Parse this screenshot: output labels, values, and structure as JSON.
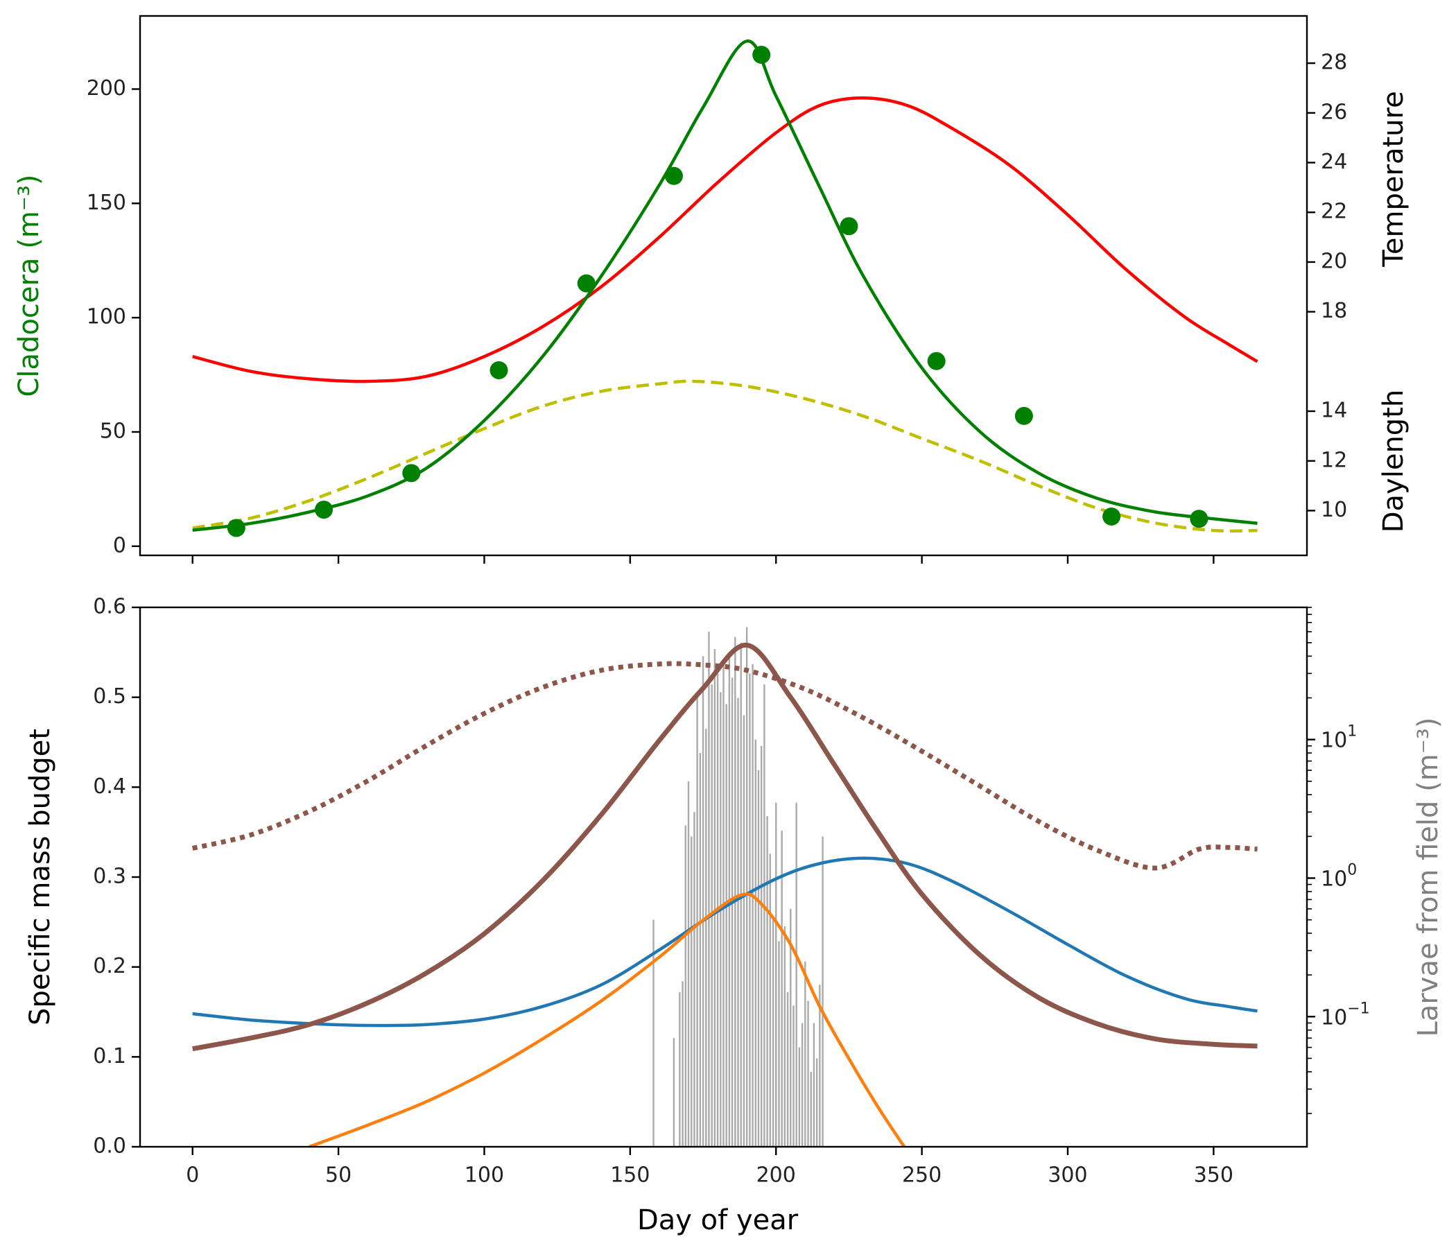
{
  "chart_data": [
    {
      "type": "line",
      "xlim": [
        -18,
        382
      ],
      "xticks": [
        0,
        50,
        100,
        150,
        200,
        250,
        300,
        350
      ],
      "ylabel": "Cladocera (m⁻³)",
      "ylim": [
        -4,
        232
      ],
      "yticks": [
        0,
        50,
        100,
        150,
        200
      ],
      "right_axis": {
        "labels": [
          "Temperature",
          "Daylength"
        ],
        "ylim": [
          8.2,
          29.9
        ],
        "temperature_ticks": [
          18,
          20,
          22,
          24,
          26,
          28
        ],
        "daylength_ticks": [
          10,
          12,
          14
        ]
      },
      "colors": {
        "cladocera": "#008000",
        "temperature": "#ff0000",
        "daylength": "#bfbf00"
      },
      "series": [
        {
          "axis": "left",
          "style": "markers",
          "x": [
            15,
            45,
            75,
            105,
            135,
            165,
            195,
            225,
            255,
            285,
            315,
            345
          ],
          "y": [
            8,
            16,
            32,
            77,
            115,
            162,
            215,
            140,
            81,
            57,
            13,
            12
          ]
        },
        {
          "axis": "left",
          "style": "solid",
          "x": [
            0,
            20,
            40,
            60,
            80,
            100,
            120,
            140,
            160,
            175,
            190,
            200,
            215,
            230,
            250,
            270,
            290,
            310,
            330,
            350,
            365
          ],
          "y": [
            7,
            10,
            15,
            22,
            34,
            55,
            83,
            118,
            158,
            192,
            221,
            197,
            157,
            118,
            78,
            50,
            32,
            21,
            15,
            12,
            10
          ]
        },
        {
          "axis": "right",
          "style": "solid",
          "x": [
            0,
            20,
            40,
            60,
            80,
            100,
            120,
            140,
            160,
            180,
            200,
            215,
            230,
            245,
            260,
            280,
            300,
            320,
            340,
            355,
            365
          ],
          "y": [
            16.2,
            15.6,
            15.3,
            15.2,
            15.4,
            16.2,
            17.4,
            19.0,
            21.0,
            23.2,
            25.2,
            26.3,
            26.6,
            26.3,
            25.4,
            23.9,
            21.9,
            19.7,
            17.8,
            16.7,
            16.0
          ]
        },
        {
          "axis": "right",
          "style": "dashed",
          "x": [
            0,
            20,
            40,
            60,
            80,
            100,
            120,
            140,
            160,
            172,
            190,
            210,
            230,
            250,
            270,
            290,
            310,
            330,
            350,
            365
          ],
          "y": [
            9.3,
            9.7,
            10.4,
            11.3,
            12.3,
            13.3,
            14.2,
            14.8,
            15.1,
            15.2,
            15.0,
            14.5,
            13.8,
            12.9,
            12.0,
            11.0,
            10.1,
            9.5,
            9.2,
            9.2
          ]
        }
      ]
    },
    {
      "type": "line",
      "xlabel": "Day of year",
      "xlim": [
        -18,
        382
      ],
      "xticks": [
        0,
        50,
        100,
        150,
        200,
        250,
        300,
        350
      ],
      "ylabel": "Specific mass budget",
      "ylim": [
        0,
        0.6
      ],
      "yticks": [
        0.0,
        0.1,
        0.2,
        0.3,
        0.4,
        0.5,
        0.6
      ],
      "right_axis": {
        "label": "Larvae from field (m⁻³)",
        "scale": "log",
        "ylim": [
          0.0115,
          90
        ],
        "ticks": [
          {
            "base": "10",
            "exp": "−1",
            "value": 0.1
          },
          {
            "base": "10",
            "exp": "0",
            "value": 1
          },
          {
            "base": "10",
            "exp": "1",
            "value": 10
          }
        ]
      },
      "colors": {
        "blue": "#1f77b4",
        "orange": "#ff7f0e",
        "brown": "#8c564b",
        "bars": "#aaaaaa"
      },
      "series": [
        {
          "color_key": "blue",
          "style": "solid",
          "x": [
            0,
            20,
            40,
            60,
            80,
            100,
            120,
            140,
            160,
            180,
            200,
            215,
            230,
            245,
            260,
            280,
            300,
            320,
            340,
            355,
            365
          ],
          "y": [
            0.148,
            0.141,
            0.137,
            0.135,
            0.136,
            0.142,
            0.156,
            0.18,
            0.219,
            0.262,
            0.298,
            0.315,
            0.321,
            0.315,
            0.296,
            0.262,
            0.225,
            0.19,
            0.165,
            0.156,
            0.151
          ]
        },
        {
          "color_key": "orange",
          "style": "solid",
          "x": [
            40,
            60,
            80,
            100,
            120,
            140,
            160,
            175,
            188,
            195,
            205,
            215,
            225,
            235,
            245
          ],
          "y": [
            0.0,
            0.024,
            0.05,
            0.082,
            0.12,
            0.162,
            0.211,
            0.252,
            0.28,
            0.27,
            0.225,
            0.156,
            0.098,
            0.044,
            -0.005
          ]
        },
        {
          "color_key": "brown",
          "style": "solid",
          "x": [
            0,
            20,
            40,
            60,
            80,
            100,
            120,
            140,
            160,
            175,
            190,
            205,
            220,
            235,
            250,
            270,
            290,
            310,
            330,
            350,
            365
          ],
          "y": [
            0.109,
            0.121,
            0.136,
            0.16,
            0.193,
            0.237,
            0.296,
            0.369,
            0.452,
            0.51,
            0.558,
            0.5,
            0.425,
            0.35,
            0.281,
            0.213,
            0.166,
            0.137,
            0.12,
            0.114,
            0.112
          ]
        },
        {
          "color_key": "brown",
          "style": "dotted",
          "x": [
            0,
            20,
            40,
            60,
            80,
            100,
            120,
            140,
            160,
            175,
            190,
            210,
            230,
            250,
            270,
            290,
            310,
            330,
            345,
            355,
            365
          ],
          "y": [
            0.332,
            0.347,
            0.373,
            0.407,
            0.446,
            0.482,
            0.511,
            0.53,
            0.537,
            0.536,
            0.53,
            0.509,
            0.477,
            0.44,
            0.401,
            0.362,
            0.33,
            0.31,
            0.331,
            0.333,
            0.331
          ]
        }
      ],
      "bars": {
        "color_key": "bars",
        "axis": "right",
        "x": [
          158,
          165,
          167,
          168,
          169,
          170,
          171,
          172,
          173,
          174,
          175,
          176,
          177,
          178,
          179,
          180,
          181,
          182,
          183,
          184,
          185,
          186,
          187,
          188,
          189,
          190,
          191,
          192,
          193,
          194,
          195,
          196,
          197,
          198,
          199,
          200,
          201,
          202,
          203,
          204,
          205,
          206,
          207,
          208,
          209,
          210,
          211,
          212,
          213,
          214,
          215,
          216
        ],
        "y": [
          0.5,
          0.07,
          0.15,
          0.18,
          2.4,
          5.0,
          2.0,
          3.0,
          20,
          8,
          40,
          12,
          60,
          25,
          45,
          30,
          22,
          35,
          18,
          40,
          28,
          55,
          20,
          50,
          15,
          65,
          30,
          35,
          10,
          6,
          9,
          25,
          2.8,
          1.5,
          0.5,
          3.5,
          0.35,
          2.2,
          0.45,
          0.15,
          0.6,
          0.12,
          3.5,
          0.06,
          0.09,
          0.25,
          0.13,
          0.04,
          0.09,
          0.05,
          0.17,
          2.0
        ]
      }
    }
  ]
}
